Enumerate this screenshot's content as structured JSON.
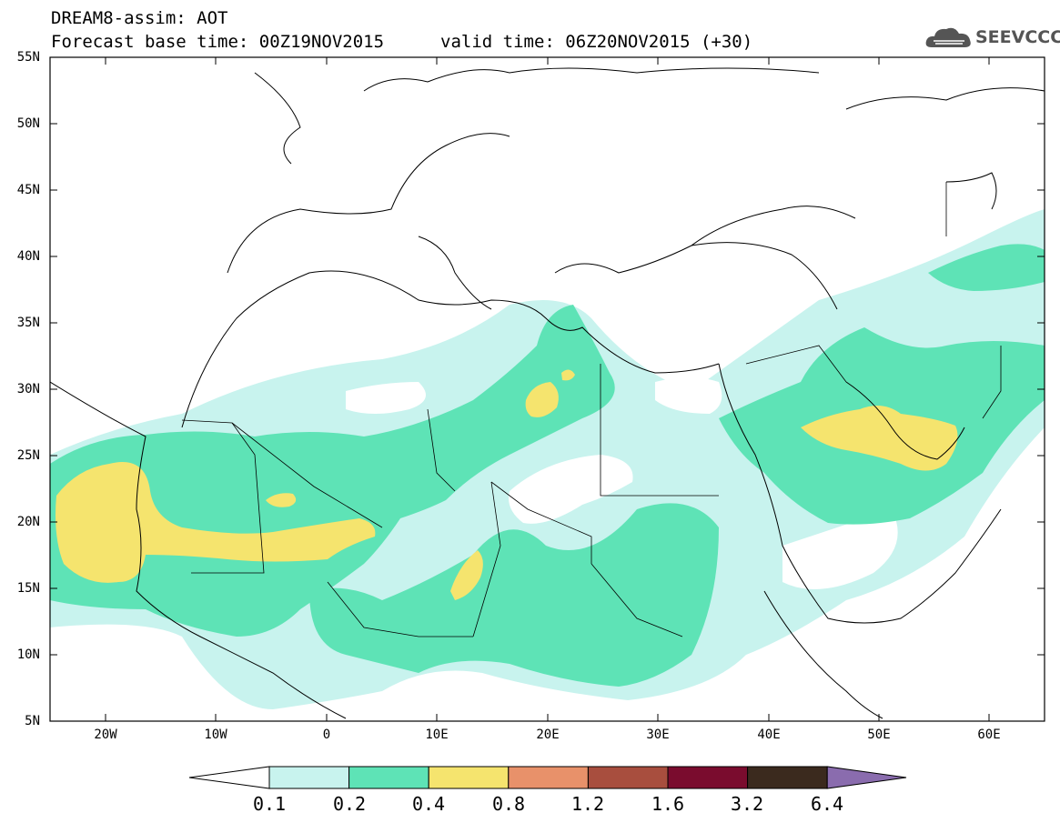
{
  "title": {
    "line1": "DREAM8-assim: AOT",
    "line2": "Forecast base time: 00Z19NOV2015",
    "line2b": "valid time: 06Z20NOV2015 (+30)"
  },
  "logo": {
    "text": "SEEVCCC",
    "icon": "cloud-icon"
  },
  "lat_labels": [
    "55N",
    "50N",
    "45N",
    "40N",
    "35N",
    "30N",
    "25N",
    "20N",
    "15N",
    "10N",
    "5N"
  ],
  "lon_labels": [
    "20W",
    "10W",
    "0",
    "10E",
    "20E",
    "30E",
    "40E",
    "50E",
    "60E"
  ],
  "extent": {
    "lon": [
      -25,
      65
    ],
    "lat": [
      5,
      55
    ]
  },
  "colorbar": {
    "labels": [
      "0.1",
      "0.2",
      "0.4",
      "0.8",
      "1.2",
      "1.6",
      "3.2",
      "6.4"
    ],
    "colors": [
      "#ffffff",
      "#c8f3ee",
      "#5ee3b6",
      "#f5e46e",
      "#e8916a",
      "#a84e3e",
      "#7a0c2e",
      "#3b2a1e",
      "#8a6cae"
    ]
  },
  "colors": {
    "land_bg": "#ffffff",
    "coast": "#000000"
  }
}
